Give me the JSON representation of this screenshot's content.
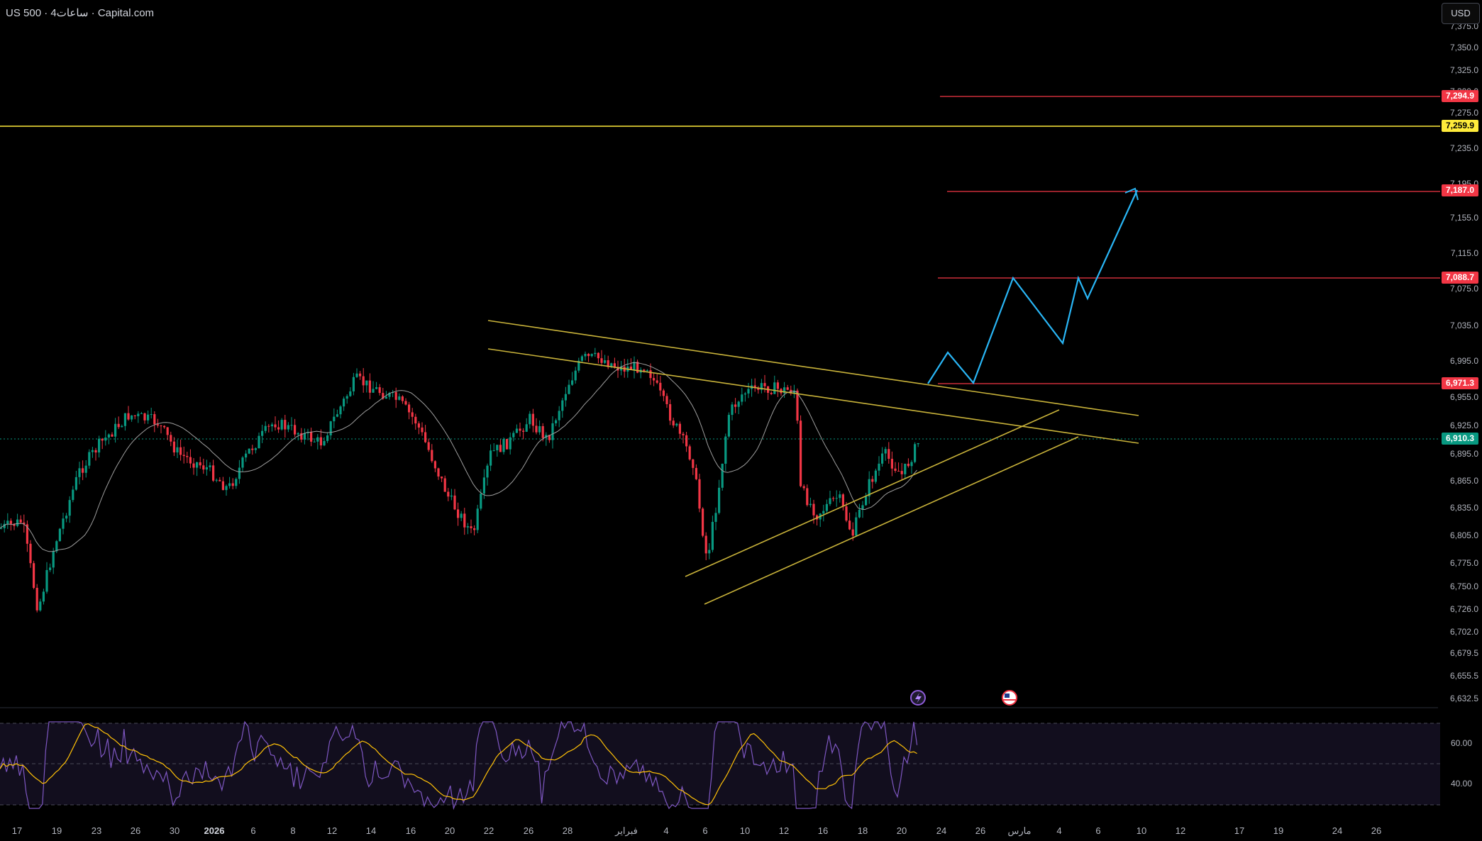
{
  "header": {
    "symbol_title": "US 500 · 4ساعات · Capital.com",
    "currency_button": "USD"
  },
  "price_axis": {
    "ticks": [
      "7,375.0",
      "7,350.0",
      "7,325.0",
      "7,300.0",
      "7,275.0",
      "7,235.0",
      "7,195.0",
      "7,155.0",
      "7,115.0",
      "7,075.0",
      "7,035.0",
      "6,995.0",
      "6,955.0",
      "6,925.0",
      "6,895.0",
      "6,865.0",
      "6,835.0",
      "6,805.0",
      "6,775.0",
      "6,750.0",
      "6,726.0",
      "6,702.0",
      "6,679.5",
      "6,655.5",
      "6,632.5"
    ],
    "tags": [
      {
        "label": "7,294.9",
        "style": "red"
      },
      {
        "label": "7,259.9",
        "style": "yellow"
      },
      {
        "label": "7,187.0",
        "style": "red"
      },
      {
        "label": "7,088.7",
        "style": "red"
      },
      {
        "label": "6,971.3",
        "style": "red"
      },
      {
        "label": "6,910.3",
        "style": "green"
      }
    ]
  },
  "rsi_axis": {
    "ticks": [
      "60.00",
      "40.00"
    ]
  },
  "time_axis": {
    "ticks": [
      "17",
      "19",
      "23",
      "26",
      "30",
      "2026",
      "6",
      "8",
      "12",
      "14",
      "16",
      "20",
      "22",
      "26",
      "28",
      "فبراير",
      "4",
      "6",
      "10",
      "12",
      "16",
      "18",
      "20",
      "24",
      "26",
      "مارس",
      "4",
      "6",
      "10",
      "12",
      "17",
      "19",
      "24",
      "26"
    ]
  },
  "event_icons": [
    "lightning-icon",
    "us-flag-icon"
  ],
  "colors": {
    "background": "#000000",
    "bull_candle": "#089981",
    "bear_candle": "#f23645",
    "pattern_lines": "#c9b33a",
    "projection": "#29b6f6",
    "level_lines": "#f23645",
    "yellow_level": "#ffeb3b",
    "rsi": "#7e57c2",
    "rsi_ma": "#ffc107",
    "moving_average": "#9e9e9e"
  }
}
